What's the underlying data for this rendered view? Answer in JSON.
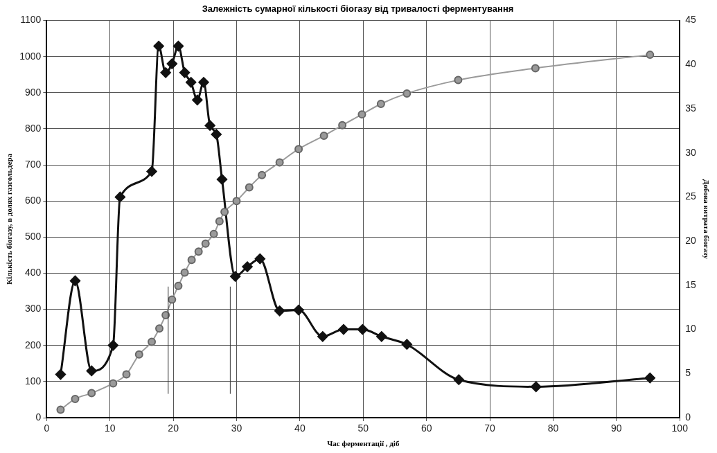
{
  "chart_data": {
    "type": "line",
    "title": "Залежність сумарної кількості біогазу від тривалості ферментування",
    "xlabel": "Час ферментації , діб",
    "ylabel": "Кількість біогазу, в долях газгольдера",
    "y2label": "Добова витрата біогазу",
    "xlim": [
      0,
      100
    ],
    "xticks": [
      0,
      10,
      20,
      30,
      40,
      50,
      60,
      70,
      80,
      90,
      100
    ],
    "ylim": [
      0,
      1100
    ],
    "yticks": [
      0,
      100,
      200,
      300,
      400,
      500,
      600,
      700,
      800,
      900,
      1000,
      1100
    ],
    "y2lim": [
      0,
      45
    ],
    "y2ticks": [
      0,
      5,
      10,
      15,
      20,
      25,
      30,
      35,
      40,
      45
    ],
    "grid": true,
    "legend": false,
    "ref_lines": [
      {
        "axis": "x",
        "value": 19.2,
        "color": "#333333"
      },
      {
        "axis": "x",
        "value": 29.0,
        "color": "#333333"
      }
    ],
    "series": [
      {
        "color": "#9a9a9a",
        "marker": "circle",
        "x": [
          2.2,
          4.5,
          7.1,
          10.5,
          12.6,
          14.6,
          16.6,
          17.8,
          18.8,
          19.8,
          20.8,
          21.8,
          22.9,
          24.0,
          25.1,
          26.4,
          27.3,
          28.1,
          30.0,
          32.0,
          34.0,
          36.8,
          39.8,
          43.8,
          46.7,
          49.8,
          52.8,
          56.9,
          65.0,
          77.2,
          95.3
        ],
        "values": [
          22,
          52,
          68,
          95,
          120,
          175,
          210,
          247,
          284,
          327,
          365,
          402,
          437,
          460,
          482,
          509,
          544,
          570,
          600,
          638,
          672,
          707,
          744,
          781,
          810,
          840,
          869,
          898,
          935,
          968,
          1005
        ]
      },
      {
        "color": "#111111",
        "marker": "diamond",
        "axis": "y2",
        "x": [
          2.2,
          4.5,
          7.1,
          10.5,
          11.6,
          16.6,
          17.7,
          18.8,
          19.8,
          20.8,
          21.8,
          22.8,
          23.8,
          24.8,
          25.8,
          26.8,
          27.7,
          29.8,
          31.7,
          33.7,
          36.8,
          39.8,
          43.6,
          46.9,
          49.9,
          52.9,
          56.9,
          65.1,
          77.3,
          95.3
        ],
        "values": [
          4.9,
          15.5,
          5.3,
          8.2,
          25.0,
          27.9,
          42.1,
          39.1,
          40.1,
          42.1,
          39.1,
          38.0,
          36.0,
          38.0,
          33.1,
          32.1,
          27.0,
          16.0,
          17.1,
          18.0,
          12.1,
          12.2,
          9.2,
          10.0,
          10.0,
          9.2,
          8.3,
          4.3,
          3.5,
          4.5
        ]
      }
    ]
  }
}
